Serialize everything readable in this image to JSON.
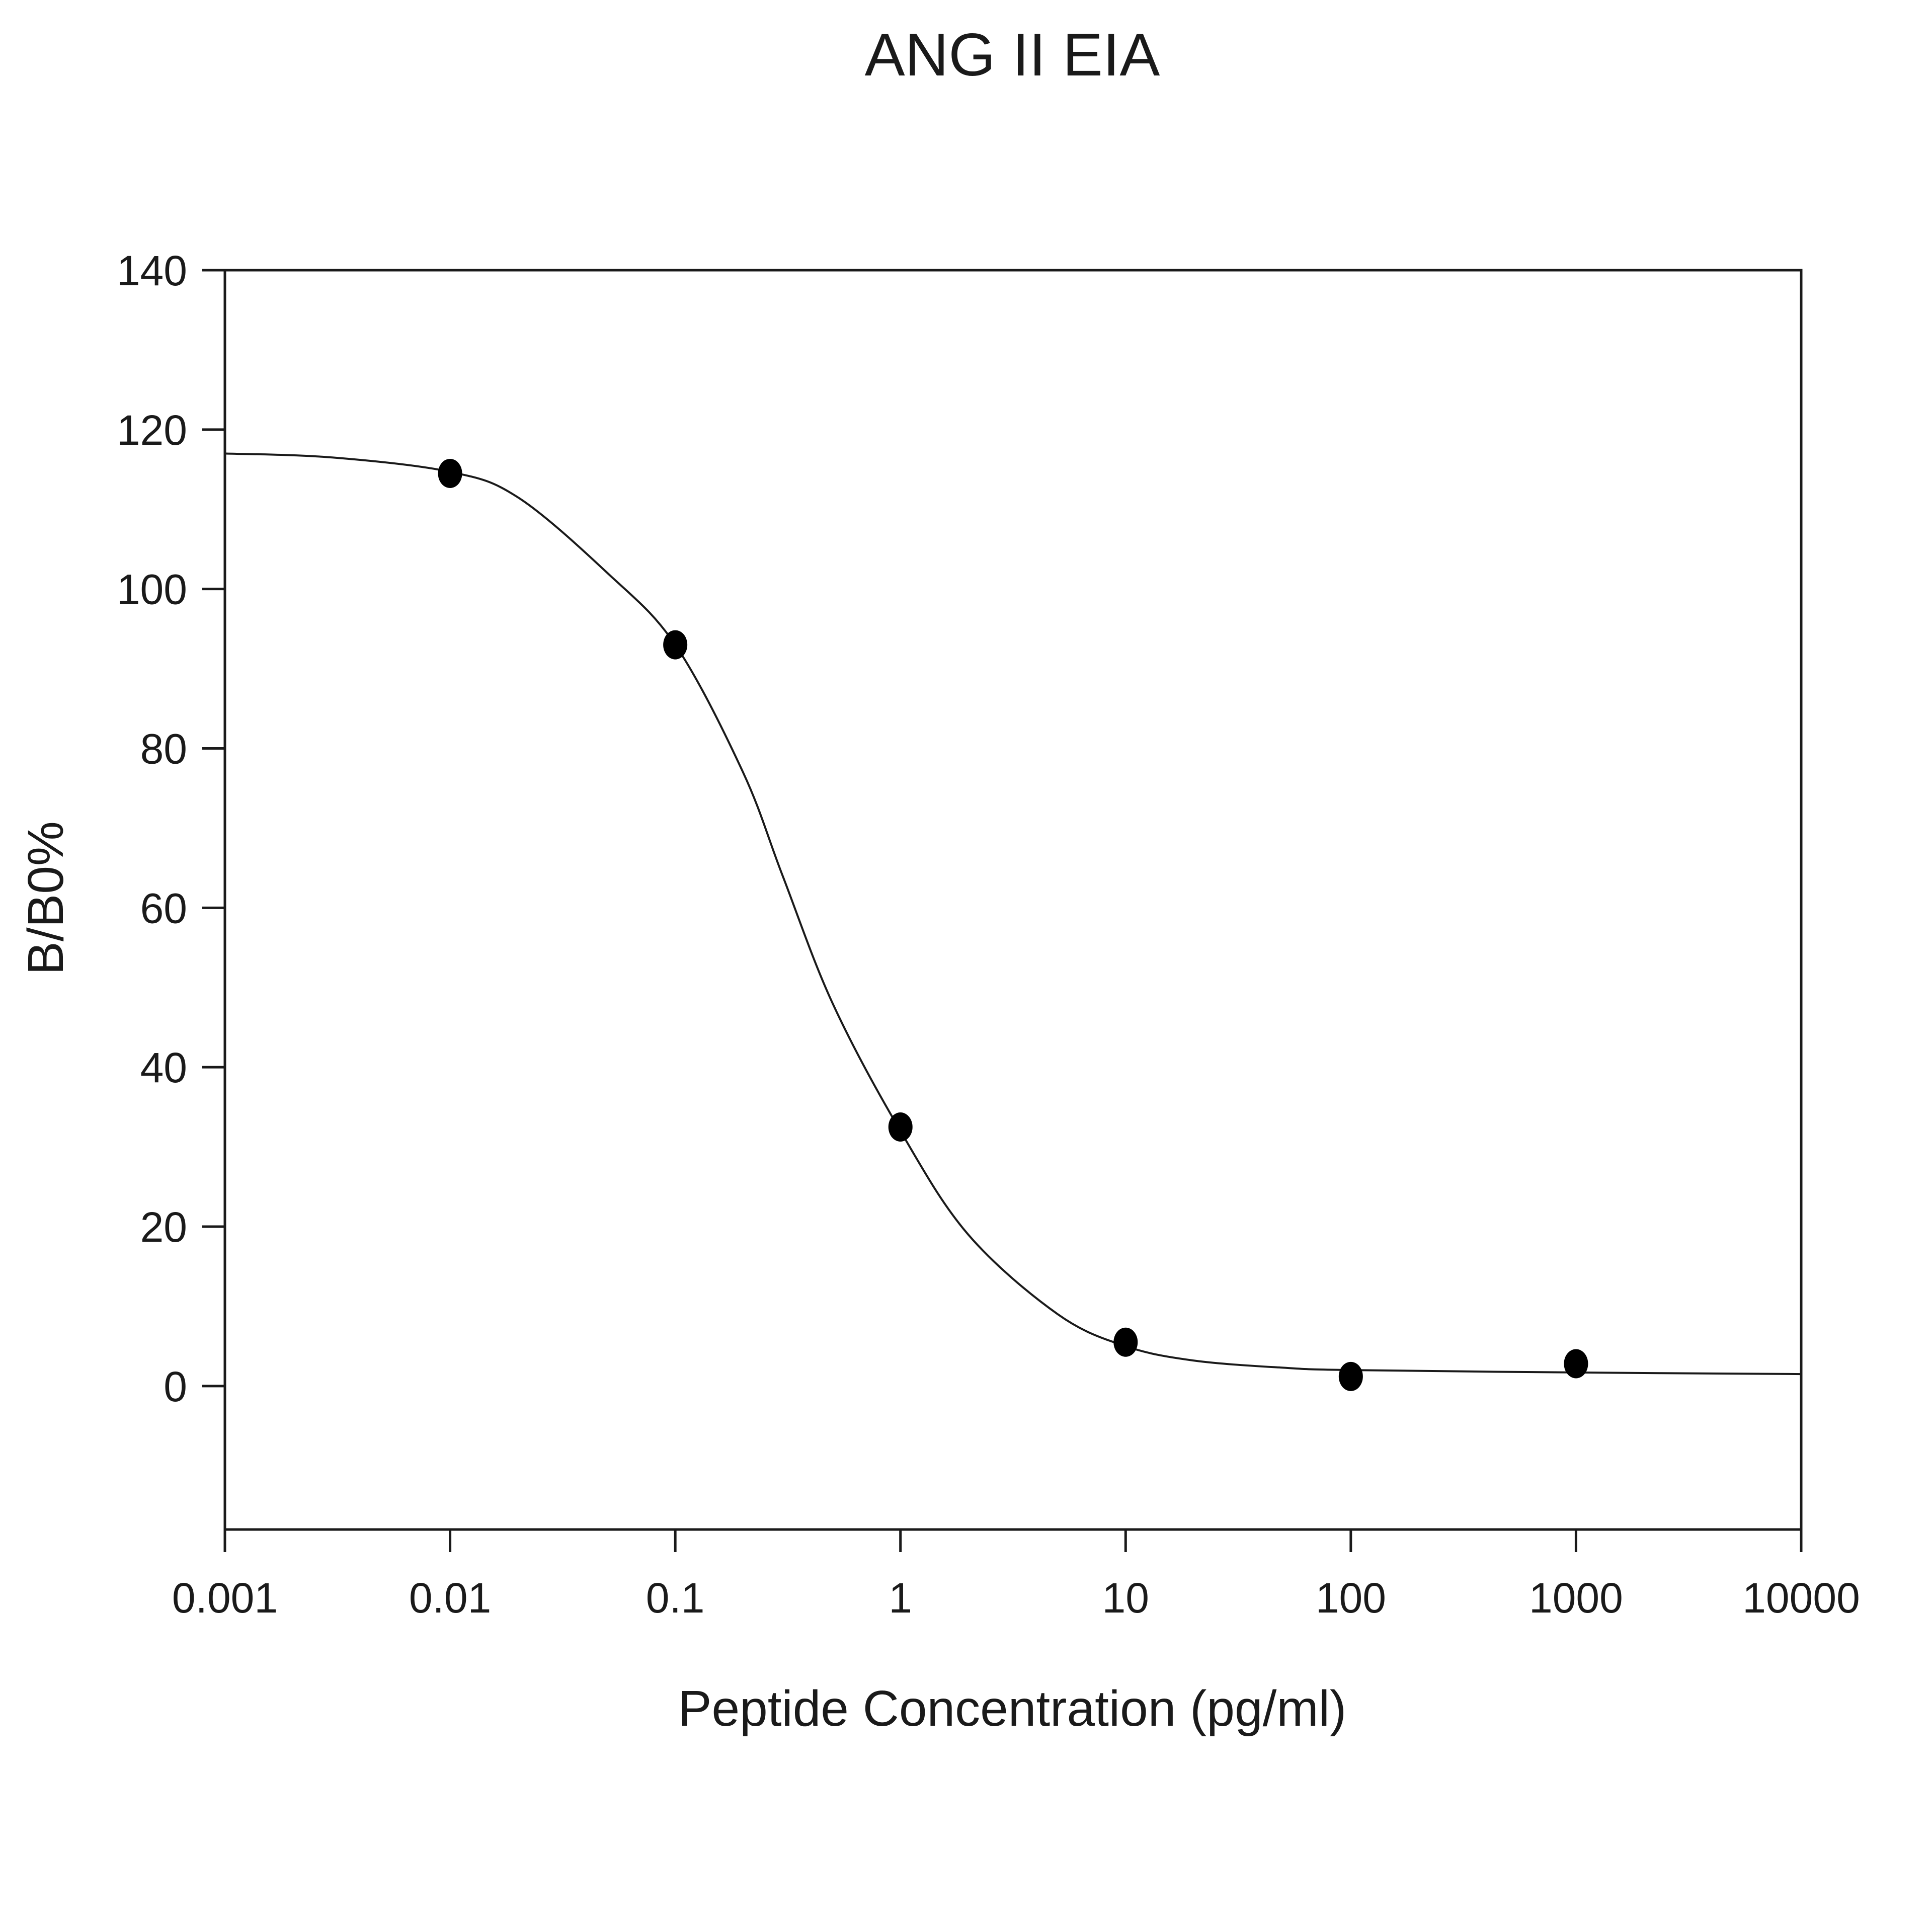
{
  "chart_data": {
    "type": "scatter",
    "title": "ANG II EIA",
    "xlabel": "Peptide Concentration (pg/ml)",
    "ylabel": "B/B0%",
    "x_scale": "log",
    "xlim": [
      0.001,
      10000
    ],
    "ylim": [
      -18,
      140
    ],
    "x_ticks": [
      0.001,
      0.01,
      0.1,
      1,
      10,
      100,
      1000,
      10000
    ],
    "x_tick_labels": [
      "0.001",
      "0.01",
      "0.1",
      "1",
      "10",
      "100",
      "1000",
      "10000"
    ],
    "y_ticks": [
      0,
      20,
      40,
      60,
      80,
      100,
      120,
      140
    ],
    "y_tick_labels": [
      "0",
      "20",
      "40",
      "60",
      "80",
      "100",
      "120",
      "140"
    ],
    "grid": false,
    "series": [
      {
        "style": "points",
        "color": "#000000",
        "x": [
          0.01,
          0.1,
          1,
          10,
          100,
          1000
        ],
        "y": [
          114.5,
          93,
          32.5,
          5.5,
          1.2,
          2.8
        ]
      },
      {
        "style": "fitted-line",
        "color": "#1a1a1a",
        "x": [
          0.001,
          0.003,
          0.01,
          0.02,
          0.05,
          0.1,
          0.2,
          0.3,
          0.5,
          1,
          2,
          5,
          10,
          20,
          50,
          100,
          1000,
          10000
        ],
        "y": [
          117,
          116.5,
          114.7,
          111.5,
          102,
          93,
          77,
          64,
          48,
          32,
          19,
          9,
          5,
          3.2,
          2.3,
          2,
          1.7,
          1.5
        ]
      }
    ]
  }
}
